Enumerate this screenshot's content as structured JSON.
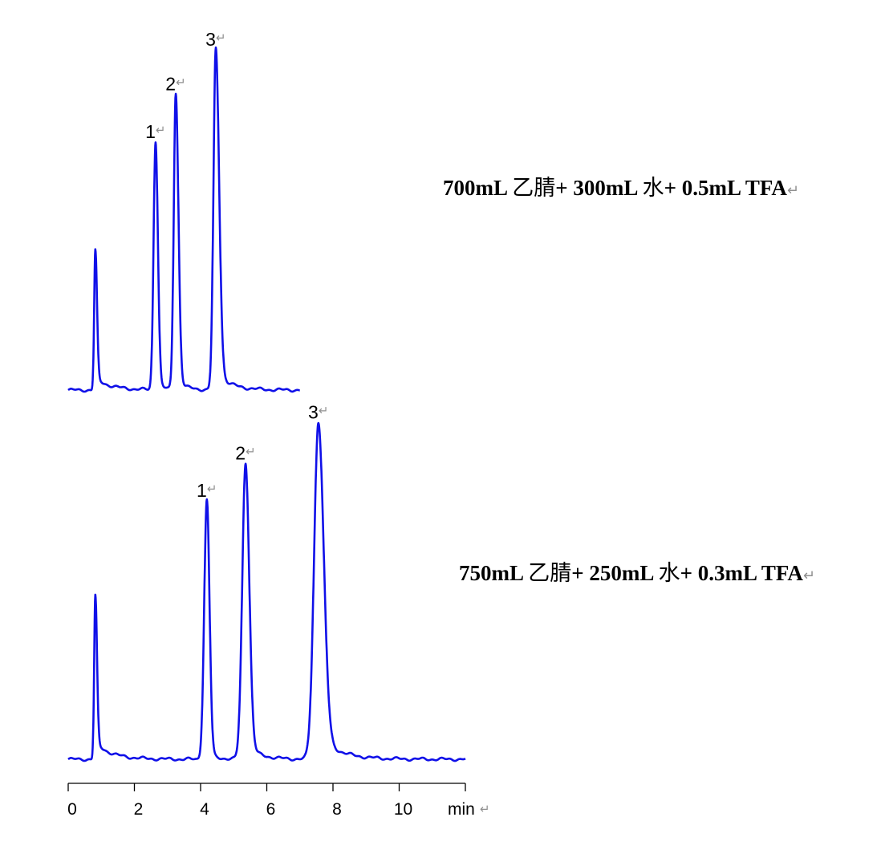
{
  "paragraph_mark": "↵",
  "chart_data": [
    {
      "type": "line",
      "condition": {
        "parts": [
          "700mL ",
          "乙腈",
          "+ 300mL ",
          "水",
          "+ 0.5mL TFA"
        ]
      },
      "x_range": [
        0,
        7
      ],
      "line_color": "#1010e8",
      "peaks": [
        {
          "label": "",
          "retention_min": 0.82,
          "relative_height": 41
        },
        {
          "label": "1",
          "retention_min": 2.64,
          "relative_height": 73
        },
        {
          "label": "2",
          "retention_min": 3.25,
          "relative_height": 87
        },
        {
          "label": "3",
          "retention_min": 4.46,
          "relative_height": 100
        }
      ]
    },
    {
      "type": "line",
      "condition": {
        "parts": [
          "750mL ",
          "乙腈",
          "+ 250mL ",
          "水",
          "+ 0.3mL TFA"
        ]
      },
      "x_range": [
        0,
        12
      ],
      "line_color": "#1010e8",
      "peaks": [
        {
          "label": "",
          "retention_min": 0.82,
          "relative_height": 48
        },
        {
          "label": "1",
          "retention_min": 4.19,
          "relative_height": 76
        },
        {
          "label": "2",
          "retention_min": 5.36,
          "relative_height": 87
        },
        {
          "label": "3",
          "retention_min": 7.56,
          "relative_height": 99
        }
      ]
    }
  ],
  "x_axis": {
    "unit": "min",
    "range": [
      0,
      12
    ],
    "ticks": [
      0,
      2,
      4,
      6,
      8,
      10,
      12
    ],
    "tick_labels": [
      "0",
      "2",
      "4",
      "6",
      "8",
      "10"
    ]
  }
}
